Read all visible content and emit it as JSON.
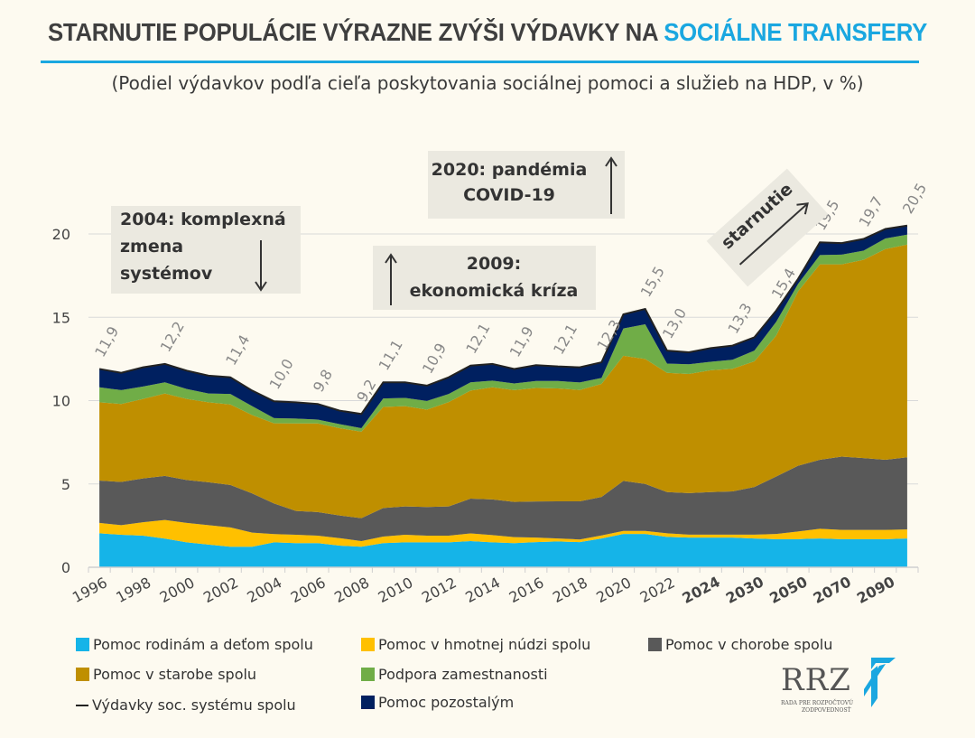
{
  "title": {
    "main": "STARNUTIE POPULÁCIE VÝRAZNE ZVÝŠI VÝDAVKY NA ",
    "accent": "SOCIÁLNE TRANSFERY"
  },
  "subtitle": "(Podiel výdavkov podľa cieľa poskytovania sociálnej pomoci a služieb na HDP, v %)",
  "annotations": {
    "reform": {
      "line1": "2004: komplexná",
      "line2": "zmena",
      "line3": "systémov"
    },
    "crisis": {
      "line1": "2009:",
      "line2": "ekonomická kríza"
    },
    "covid": {
      "line1": "2020: pandémia",
      "line2": "COVID-19"
    },
    "aging": "starnutie"
  },
  "logo": {
    "text": "RRZ",
    "sub1": "RADA PRE ROZPOČTOVÚ",
    "sub2": "ZODPOVEDNOSŤ"
  },
  "colors": {
    "accent": "#1aa7e0",
    "background": "#fdfaf0"
  },
  "chart_data": {
    "type": "area",
    "stacked": true,
    "ylim": [
      0,
      21
    ],
    "yticks": [
      "0",
      "5",
      "10",
      "15",
      "20"
    ],
    "grid": true,
    "legend_position": "bottom",
    "categories": [
      "1996",
      "1997",
      "1998",
      "1999",
      "2000",
      "2001",
      "2002",
      "2003",
      "2004",
      "2005",
      "2006",
      "2007",
      "2008",
      "2009",
      "2010",
      "2011",
      "2012",
      "2013",
      "2014",
      "2015",
      "2016",
      "2017",
      "2018",
      "2019",
      "2020",
      "2021",
      "2022",
      "2023",
      "2024",
      "2025",
      "2030",
      "2040",
      "2050",
      "2060",
      "2070",
      "2080",
      "2090",
      "2100"
    ],
    "xtick_labels": [
      "1996",
      "1998",
      "2000",
      "2002",
      "2004",
      "2006",
      "2008",
      "2010",
      "2012",
      "2014",
      "2016",
      "2018",
      "2020",
      "2022",
      "2024",
      "2030",
      "2050",
      "2070",
      "2090"
    ],
    "series": [
      {
        "name": "Pomoc rodinám a deťom spolu",
        "color": "#15b4e8",
        "values": [
          2.04,
          1.95,
          1.9,
          1.72,
          1.5,
          1.36,
          1.23,
          1.23,
          1.5,
          1.45,
          1.45,
          1.3,
          1.23,
          1.45,
          1.5,
          1.5,
          1.5,
          1.57,
          1.5,
          1.45,
          1.51,
          1.55,
          1.51,
          1.73,
          2.0,
          2.0,
          1.82,
          1.78,
          1.78,
          1.78,
          1.73,
          1.69,
          1.69,
          1.73,
          1.69,
          1.69,
          1.69,
          1.73
        ]
      },
      {
        "name": "Pomoc v hmotnej núdzi spolu",
        "color": "#ffc000",
        "values": [
          0.62,
          0.58,
          0.8,
          1.12,
          1.16,
          1.17,
          1.16,
          0.85,
          0.49,
          0.5,
          0.45,
          0.45,
          0.34,
          0.39,
          0.45,
          0.4,
          0.4,
          0.46,
          0.43,
          0.36,
          0.27,
          0.18,
          0.16,
          0.18,
          0.18,
          0.18,
          0.22,
          0.18,
          0.18,
          0.18,
          0.23,
          0.31,
          0.46,
          0.58,
          0.55,
          0.55,
          0.55,
          0.54
        ]
      },
      {
        "name": "Pomoc v chorobe spolu",
        "color": "#595959",
        "values": [
          2.54,
          2.59,
          2.63,
          2.64,
          2.58,
          2.57,
          2.55,
          2.35,
          1.84,
          1.43,
          1.41,
          1.36,
          1.38,
          1.72,
          1.7,
          1.72,
          1.75,
          2.09,
          2.14,
          2.11,
          2.17,
          2.23,
          2.29,
          2.31,
          3.0,
          2.82,
          2.47,
          2.49,
          2.55,
          2.59,
          2.86,
          3.45,
          3.94,
          4.14,
          4.4,
          4.31,
          4.21,
          4.33
        ]
      },
      {
        "name": "Pomoc v starobe spolu",
        "color": "#bf8f00",
        "values": [
          4.7,
          4.68,
          4.77,
          4.95,
          4.86,
          4.8,
          4.83,
          4.7,
          4.81,
          5.25,
          5.32,
          5.24,
          5.19,
          6.06,
          6.02,
          5.84,
          6.26,
          6.48,
          6.73,
          6.71,
          6.81,
          6.77,
          6.68,
          6.78,
          7.51,
          7.5,
          7.16,
          7.15,
          7.31,
          7.36,
          7.54,
          8.45,
          10.46,
          11.73,
          11.54,
          11.9,
          12.64,
          12.76
        ]
      },
      {
        "name": "Podpora zamestnanosti",
        "color": "#70ad47",
        "values": [
          0.9,
          0.83,
          0.75,
          0.67,
          0.6,
          0.53,
          0.63,
          0.54,
          0.31,
          0.29,
          0.23,
          0.24,
          0.21,
          0.51,
          0.49,
          0.52,
          0.49,
          0.5,
          0.4,
          0.4,
          0.42,
          0.45,
          0.45,
          0.36,
          1.64,
          2.08,
          0.55,
          0.58,
          0.51,
          0.54,
          0.64,
          0.83,
          0.45,
          0.55,
          0.58,
          0.55,
          0.64,
          0.6
        ]
      },
      {
        "name": "Pomoc pozostalým",
        "color": "#002060",
        "values": [
          1.1,
          1.04,
          1.15,
          1.1,
          1.1,
          1.07,
          1.0,
          0.93,
          1.01,
          0.98,
          0.94,
          0.81,
          0.85,
          0.97,
          0.94,
          0.92,
          1.0,
          1.0,
          1.0,
          0.87,
          0.95,
          0.87,
          0.91,
          0.94,
          0.85,
          0.92,
          0.78,
          0.72,
          0.82,
          0.85,
          0.8,
          0.67,
          0.3,
          0.77,
          0.69,
          0.7,
          0.57,
          0.54
        ]
      }
    ],
    "total_line": {
      "name": "Výdavky soc. systému spolu",
      "color": "#222222"
    },
    "total_labels": [
      {
        "x": "1996",
        "text": "11,9"
      },
      {
        "x": "1999",
        "text": "12,2"
      },
      {
        "x": "2002",
        "text": "11,4"
      },
      {
        "x": "2004",
        "text": "10,0"
      },
      {
        "x": "2006",
        "text": "9,8"
      },
      {
        "x": "2008",
        "text": "9,2"
      },
      {
        "x": "2009",
        "text": "11,1"
      },
      {
        "x": "2011",
        "text": "10,9"
      },
      {
        "x": "2013",
        "text": "12,1"
      },
      {
        "x": "2015",
        "text": "11,9"
      },
      {
        "x": "2017",
        "text": "12,1"
      },
      {
        "x": "2019",
        "text": "12,3"
      },
      {
        "x": "2021",
        "text": "15,5"
      },
      {
        "x": "2022",
        "text": "13,0"
      },
      {
        "x": "2025",
        "text": "13,3"
      },
      {
        "x": "2040",
        "text": "15,4"
      },
      {
        "x": "2060",
        "text": "19,5"
      },
      {
        "x": "2080",
        "text": "19,7"
      },
      {
        "x": "2100",
        "text": "20,5"
      }
    ],
    "bold_from": "2024"
  },
  "legend": [
    {
      "label": "Pomoc rodinám a deťom spolu",
      "kind": "swatch",
      "color": "#15b4e8"
    },
    {
      "label": "Pomoc v hmotnej núdzi spolu",
      "kind": "swatch",
      "color": "#ffc000"
    },
    {
      "label": "Pomoc v chorobe spolu",
      "kind": "swatch",
      "color": "#595959"
    },
    {
      "label": "Pomoc v starobe spolu",
      "kind": "swatch",
      "color": "#bf8f00"
    },
    {
      "label": "Podpora zamestnanosti",
      "kind": "swatch",
      "color": "#70ad47"
    },
    {
      "label": "Výdavky soc. systému spolu",
      "kind": "line",
      "color": "#222222"
    },
    {
      "label": "Pomoc pozostalým",
      "kind": "swatch",
      "color": "#002060"
    }
  ]
}
